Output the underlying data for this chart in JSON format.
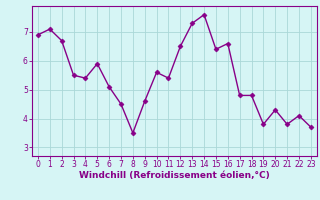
{
  "x": [
    0,
    1,
    2,
    3,
    4,
    5,
    6,
    7,
    8,
    9,
    10,
    11,
    12,
    13,
    14,
    15,
    16,
    17,
    18,
    19,
    20,
    21,
    22,
    23
  ],
  "y": [
    6.9,
    7.1,
    6.7,
    5.5,
    5.4,
    5.9,
    5.1,
    4.5,
    3.5,
    4.6,
    5.6,
    5.4,
    6.5,
    7.3,
    7.6,
    6.4,
    6.6,
    4.8,
    4.8,
    3.8,
    4.3,
    3.8,
    4.1,
    3.7
  ],
  "line_color": "#880088",
  "marker": "D",
  "markersize": 2.5,
  "linewidth": 1.0,
  "xlabel": "Windchill (Refroidissement éolien,°C)",
  "xlabel_fontsize": 6.5,
  "ylim": [
    2.7,
    7.9
  ],
  "xlim": [
    -0.5,
    23.5
  ],
  "yticks": [
    3,
    4,
    5,
    6,
    7
  ],
  "xticks": [
    0,
    1,
    2,
    3,
    4,
    5,
    6,
    7,
    8,
    9,
    10,
    11,
    12,
    13,
    14,
    15,
    16,
    17,
    18,
    19,
    20,
    21,
    22,
    23
  ],
  "tick_fontsize": 5.5,
  "background_color": "#d6f5f5",
  "grid_color": "#aad8d8",
  "grid_linewidth": 0.6,
  "spine_color": "#880088",
  "tick_color": "#880088",
  "label_color": "#880088"
}
